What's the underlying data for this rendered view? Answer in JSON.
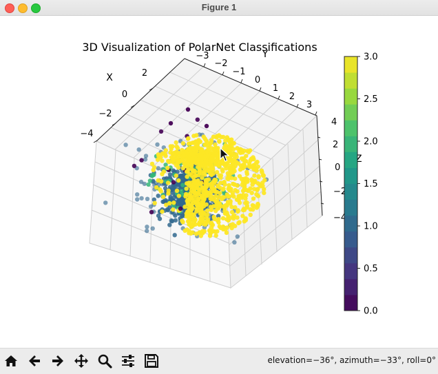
{
  "window": {
    "title": "Figure 1"
  },
  "figure": {
    "title": "3D Visualization of PolarNet Classifications",
    "x_label": "X",
    "y_label": "Y",
    "z_label": "Z",
    "x_ticks": [
      "2",
      "0",
      "−2",
      "−4"
    ],
    "y_ticks": [
      "−3",
      "−2",
      "−1",
      "0",
      "1",
      "2",
      "3"
    ],
    "z_ticks": [
      "4",
      "2",
      "0",
      "−2",
      "−4"
    ]
  },
  "colorbar": {
    "min": 0.0,
    "max": 3.0,
    "tick_labels": [
      "3.0",
      "2.5",
      "2.0",
      "1.5",
      "1.0",
      "0.5",
      "0.0"
    ],
    "colors": [
      "#440154",
      "#46327e",
      "#365c8d",
      "#277f8e",
      "#1fa187",
      "#4ac16d",
      "#a0da39",
      "#fde725"
    ]
  },
  "chart_data": {
    "type": "scatter",
    "title": "3D Visualization of PolarNet Classifications",
    "xlabel": "X",
    "ylabel": "Y",
    "zlabel": "Z",
    "colorbar_range": [
      0.0,
      3.0
    ],
    "class_colors": {
      "0": "#440154",
      "1": "#31688e",
      "2": "#35b779",
      "3": "#fde725"
    },
    "view": {
      "elevation": -36,
      "azimuth": -33,
      "roll": 0
    }
  },
  "toolbar": {
    "buttons": [
      {
        "name": "home-icon",
        "glyph": "home"
      },
      {
        "name": "back-icon",
        "glyph": "back"
      },
      {
        "name": "forward-icon",
        "glyph": "forward"
      },
      {
        "name": "pan-icon",
        "glyph": "pan"
      },
      {
        "name": "zoom-icon",
        "glyph": "zoom"
      },
      {
        "name": "configure-subplots-icon",
        "glyph": "sliders"
      },
      {
        "name": "save-icon",
        "glyph": "save"
      }
    ],
    "status": "elevation=−36°, azimuth=−33°, roll=0°"
  }
}
